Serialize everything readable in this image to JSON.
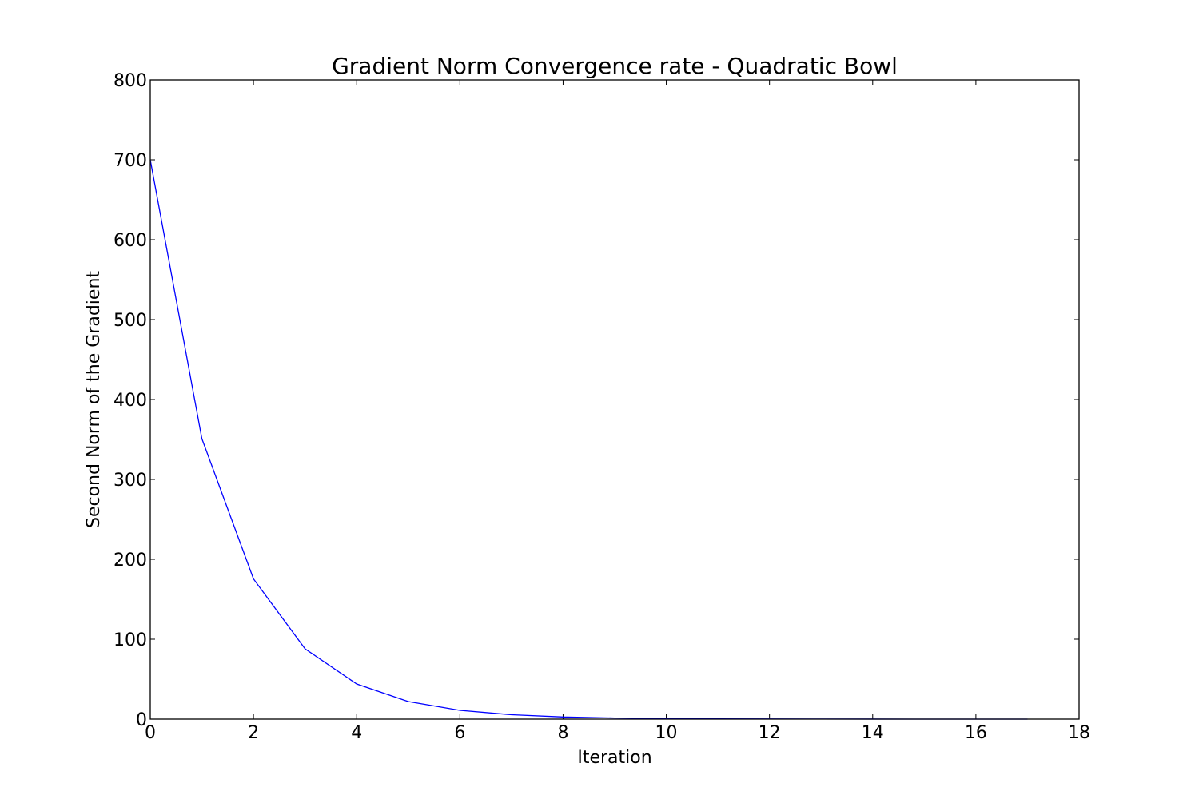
{
  "chart_data": {
    "type": "line",
    "title": "Gradient Norm Convergence rate - Quadratic Bowl",
    "xlabel": "Iteration",
    "ylabel": "Second Norm of the Gradient",
    "xlim": [
      0,
      18
    ],
    "ylim": [
      0,
      800
    ],
    "xticks": [
      0,
      2,
      4,
      6,
      8,
      10,
      12,
      14,
      16,
      18
    ],
    "yticks": [
      0,
      100,
      200,
      300,
      400,
      500,
      600,
      700,
      800
    ],
    "grid": false,
    "series": [
      {
        "color": "#0000ff",
        "x": [
          0,
          1,
          2,
          3,
          4,
          5,
          6,
          7,
          8,
          9,
          10,
          11,
          12,
          13,
          14,
          15,
          16,
          17
        ],
        "y": [
          700,
          351,
          175.5,
          88,
          44,
          22,
          11,
          5.5,
          2.7,
          1.4,
          0.7,
          0.35,
          0.17,
          0.09,
          0.04,
          0.02,
          0.01,
          0.005
        ]
      }
    ]
  }
}
